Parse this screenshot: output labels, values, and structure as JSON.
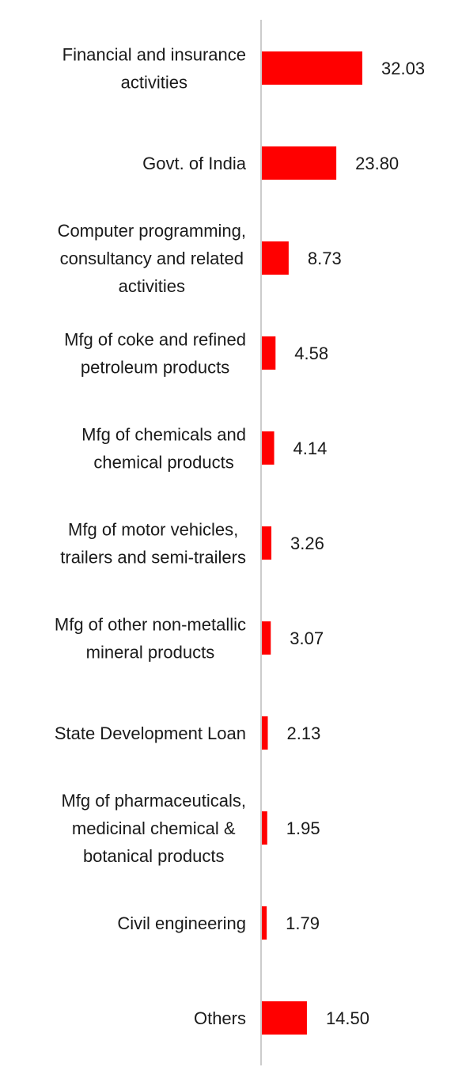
{
  "chart_data": {
    "type": "bar",
    "orientation": "horizontal",
    "categories": [
      [
        "Financial and insurance",
        "activities"
      ],
      [
        "Govt. of India"
      ],
      [
        "Computer programming,",
        "consultancy and related",
        "activities"
      ],
      [
        "Mfg of coke and refined",
        "petroleum products"
      ],
      [
        "Mfg of chemicals and",
        "chemical products"
      ],
      [
        "Mfg of motor vehicles,",
        "trailers and semi-trailers"
      ],
      [
        "Mfg of other non-metallic",
        "mineral products"
      ],
      [
        "State Development Loan"
      ],
      [
        "Mfg of pharmaceuticals,",
        "medicinal chemical &",
        "botanical products"
      ],
      [
        "Civil engineering"
      ],
      [
        "Others"
      ]
    ],
    "values": [
      32.03,
      23.8,
      8.73,
      4.58,
      4.14,
      3.26,
      3.07,
      2.13,
      1.95,
      1.79,
      14.5
    ],
    "value_labels": [
      "32.03",
      "23.80",
      "8.73",
      "4.58",
      "4.14",
      "3.26",
      "3.07",
      "2.13",
      "1.95",
      "1.79",
      "14.50"
    ],
    "xlim": [
      0,
      32.03
    ],
    "bar_color": "#ff0000",
    "axis_color": "#cccccc",
    "grid": false,
    "title": "",
    "xlabel": "",
    "ylabel": ""
  }
}
